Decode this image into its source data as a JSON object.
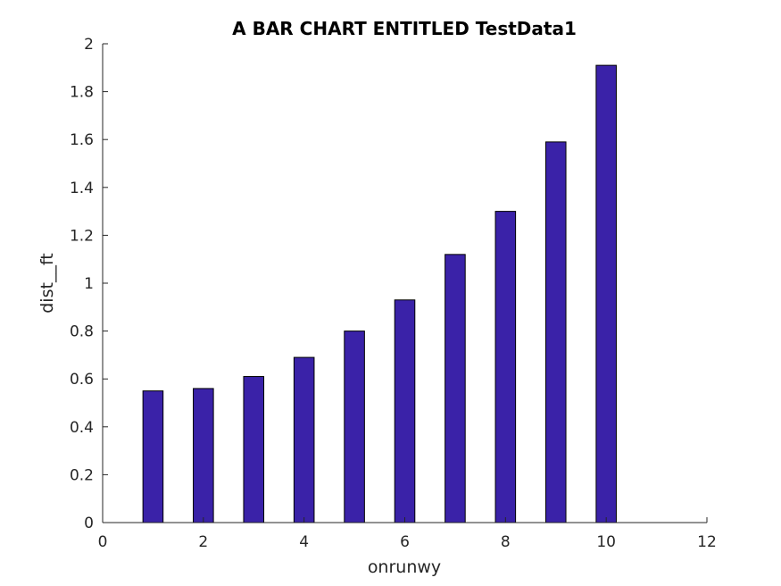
{
  "chart_data": {
    "type": "bar",
    "title": "A BAR CHART ENTITLED TestData1",
    "xlabel": "onrunwy",
    "ylabel": "dist__ft",
    "x": [
      1,
      2,
      3,
      4,
      5,
      6,
      7,
      8,
      9,
      10
    ],
    "values": [
      0.55,
      0.56,
      0.61,
      0.69,
      0.8,
      0.93,
      1.12,
      1.3,
      1.59,
      1.91
    ],
    "xlim": [
      0,
      12
    ],
    "ylim": [
      0,
      2
    ],
    "xticks": [
      0,
      2,
      4,
      6,
      8,
      10,
      12
    ],
    "yticks": [
      0,
      0.2,
      0.4,
      0.6,
      0.8,
      1,
      1.2,
      1.4,
      1.6,
      1.8,
      2
    ],
    "grid": false,
    "bar_color": "#3a22a8"
  }
}
